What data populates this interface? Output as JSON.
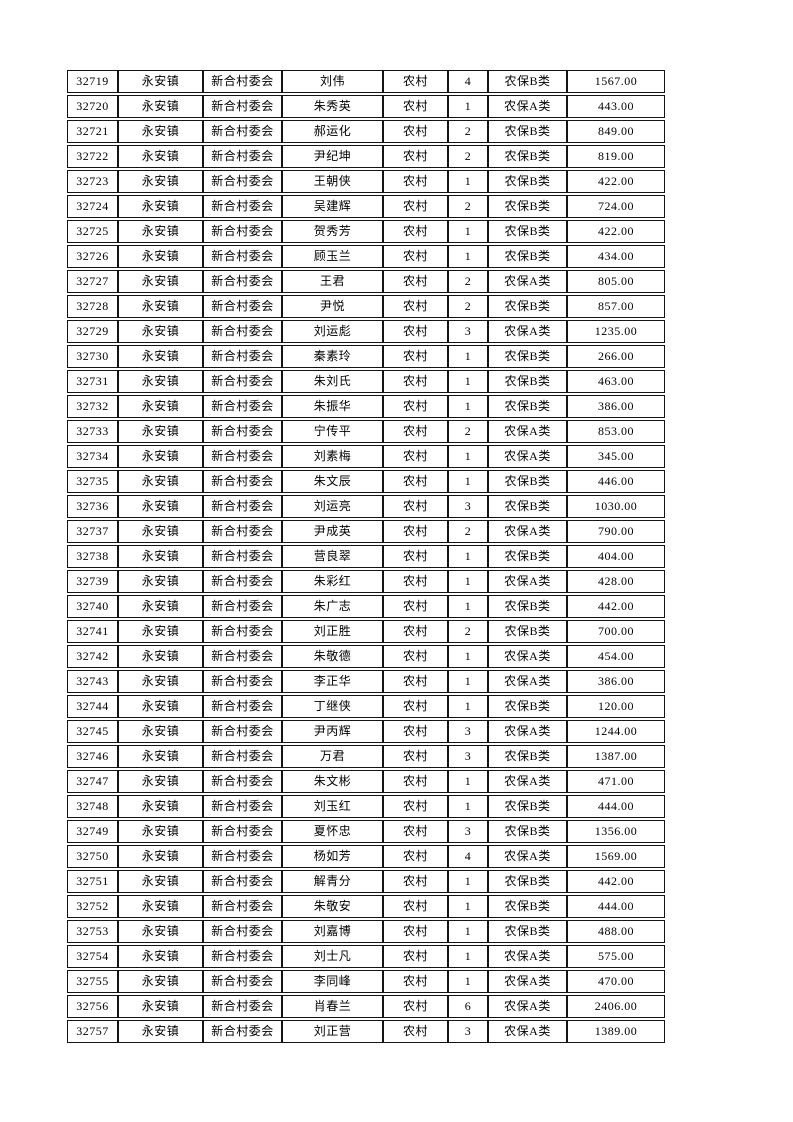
{
  "page": {
    "background_color": "#ffffff",
    "text_color": "#000000",
    "border_color": "#141414"
  },
  "table": {
    "column_keys": [
      "record-id",
      "town",
      "village-committee",
      "person-name",
      "area-type",
      "person-count",
      "insurance-type",
      "amount"
    ],
    "rows": [
      [
        "32719",
        "永安镇",
        "新合村委会",
        "刘伟",
        "农村",
        "4",
        "农保B类",
        "1567.00"
      ],
      [
        "32720",
        "永安镇",
        "新合村委会",
        "朱秀英",
        "农村",
        "1",
        "农保A类",
        "443.00"
      ],
      [
        "32721",
        "永安镇",
        "新合村委会",
        "郝运化",
        "农村",
        "2",
        "农保B类",
        "849.00"
      ],
      [
        "32722",
        "永安镇",
        "新合村委会",
        "尹纪坤",
        "农村",
        "2",
        "农保B类",
        "819.00"
      ],
      [
        "32723",
        "永安镇",
        "新合村委会",
        "王朝侠",
        "农村",
        "1",
        "农保B类",
        "422.00"
      ],
      [
        "32724",
        "永安镇",
        "新合村委会",
        "吴建辉",
        "农村",
        "2",
        "农保B类",
        "724.00"
      ],
      [
        "32725",
        "永安镇",
        "新合村委会",
        "贺秀芳",
        "农村",
        "1",
        "农保B类",
        "422.00"
      ],
      [
        "32726",
        "永安镇",
        "新合村委会",
        "顾玉兰",
        "农村",
        "1",
        "农保B类",
        "434.00"
      ],
      [
        "32727",
        "永安镇",
        "新合村委会",
        "王君",
        "农村",
        "2",
        "农保A类",
        "805.00"
      ],
      [
        "32728",
        "永安镇",
        "新合村委会",
        "尹悦",
        "农村",
        "2",
        "农保B类",
        "857.00"
      ],
      [
        "32729",
        "永安镇",
        "新合村委会",
        "刘运彪",
        "农村",
        "3",
        "农保A类",
        "1235.00"
      ],
      [
        "32730",
        "永安镇",
        "新合村委会",
        "秦素玲",
        "农村",
        "1",
        "农保B类",
        "266.00"
      ],
      [
        "32731",
        "永安镇",
        "新合村委会",
        "朱刘氏",
        "农村",
        "1",
        "农保B类",
        "463.00"
      ],
      [
        "32732",
        "永安镇",
        "新合村委会",
        "朱振华",
        "农村",
        "1",
        "农保B类",
        "386.00"
      ],
      [
        "32733",
        "永安镇",
        "新合村委会",
        "宁传平",
        "农村",
        "2",
        "农保A类",
        "853.00"
      ],
      [
        "32734",
        "永安镇",
        "新合村委会",
        "刘素梅",
        "农村",
        "1",
        "农保A类",
        "345.00"
      ],
      [
        "32735",
        "永安镇",
        "新合村委会",
        "朱文辰",
        "农村",
        "1",
        "农保B类",
        "446.00"
      ],
      [
        "32736",
        "永安镇",
        "新合村委会",
        "刘运亮",
        "农村",
        "3",
        "农保B类",
        "1030.00"
      ],
      [
        "32737",
        "永安镇",
        "新合村委会",
        "尹成英",
        "农村",
        "2",
        "农保A类",
        "790.00"
      ],
      [
        "32738",
        "永安镇",
        "新合村委会",
        "营良翠",
        "农村",
        "1",
        "农保B类",
        "404.00"
      ],
      [
        "32739",
        "永安镇",
        "新合村委会",
        "朱彩红",
        "农村",
        "1",
        "农保A类",
        "428.00"
      ],
      [
        "32740",
        "永安镇",
        "新合村委会",
        "朱广志",
        "农村",
        "1",
        "农保B类",
        "442.00"
      ],
      [
        "32741",
        "永安镇",
        "新合村委会",
        "刘正胜",
        "农村",
        "2",
        "农保B类",
        "700.00"
      ],
      [
        "32742",
        "永安镇",
        "新合村委会",
        "朱敬德",
        "农村",
        "1",
        "农保A类",
        "454.00"
      ],
      [
        "32743",
        "永安镇",
        "新合村委会",
        "李正华",
        "农村",
        "1",
        "农保A类",
        "386.00"
      ],
      [
        "32744",
        "永安镇",
        "新合村委会",
        "丁继侠",
        "农村",
        "1",
        "农保B类",
        "120.00"
      ],
      [
        "32745",
        "永安镇",
        "新合村委会",
        "尹丙辉",
        "农村",
        "3",
        "农保A类",
        "1244.00"
      ],
      [
        "32746",
        "永安镇",
        "新合村委会",
        "万君",
        "农村",
        "3",
        "农保B类",
        "1387.00"
      ],
      [
        "32747",
        "永安镇",
        "新合村委会",
        "朱文彬",
        "农村",
        "1",
        "农保A类",
        "471.00"
      ],
      [
        "32748",
        "永安镇",
        "新合村委会",
        "刘玉红",
        "农村",
        "1",
        "农保B类",
        "444.00"
      ],
      [
        "32749",
        "永安镇",
        "新合村委会",
        "夏怀忠",
        "农村",
        "3",
        "农保B类",
        "1356.00"
      ],
      [
        "32750",
        "永安镇",
        "新合村委会",
        "杨如芳",
        "农村",
        "4",
        "农保A类",
        "1569.00"
      ],
      [
        "32751",
        "永安镇",
        "新合村委会",
        "解青分",
        "农村",
        "1",
        "农保B类",
        "442.00"
      ],
      [
        "32752",
        "永安镇",
        "新合村委会",
        "朱敬安",
        "农村",
        "1",
        "农保B类",
        "444.00"
      ],
      [
        "32753",
        "永安镇",
        "新合村委会",
        "刘嘉博",
        "农村",
        "1",
        "农保B类",
        "488.00"
      ],
      [
        "32754",
        "永安镇",
        "新合村委会",
        "刘士凡",
        "农村",
        "1",
        "农保A类",
        "575.00"
      ],
      [
        "32755",
        "永安镇",
        "新合村委会",
        "李同峰",
        "农村",
        "1",
        "农保A类",
        "470.00"
      ],
      [
        "32756",
        "永安镇",
        "新合村委会",
        "肖春兰",
        "农村",
        "6",
        "农保A类",
        "2406.00"
      ],
      [
        "32757",
        "永安镇",
        "新合村委会",
        "刘正营",
        "农村",
        "3",
        "农保A类",
        "1389.00"
      ]
    ]
  }
}
